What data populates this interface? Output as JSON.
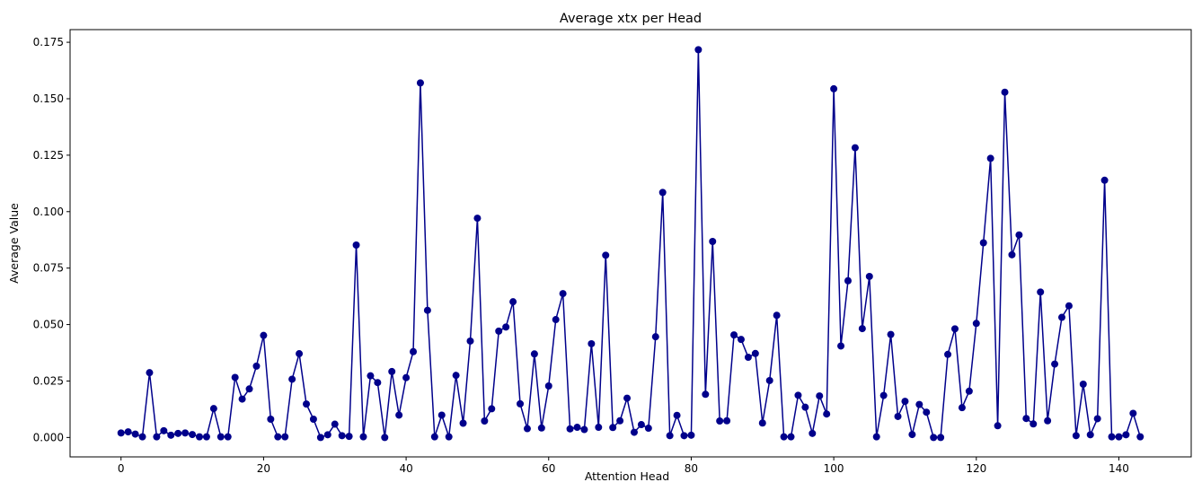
{
  "chart_data": {
    "type": "line",
    "title": "Average xtx per Head",
    "xlabel": "Attention Head",
    "ylabel": "Average Value",
    "xlim": [
      -7.15,
      150.15
    ],
    "ylim": [
      -0.0086,
      0.1806
    ],
    "xticks": [
      0,
      20,
      40,
      60,
      80,
      100,
      120,
      140
    ],
    "xtick_labels": [
      "0",
      "20",
      "40",
      "60",
      "80",
      "100",
      "120",
      "140"
    ],
    "yticks": [
      0.0,
      0.025,
      0.05,
      0.075,
      0.1,
      0.125,
      0.15,
      0.175
    ],
    "ytick_labels": [
      "0.000",
      "0.025",
      "0.050",
      "0.075",
      "0.100",
      "0.125",
      "0.150",
      "0.175"
    ],
    "grid": false,
    "legend": "none",
    "series": [
      {
        "color": "#00008b",
        "marker": "circle",
        "x": [
          0,
          1,
          2,
          3,
          4,
          5,
          6,
          7,
          8,
          9,
          10,
          11,
          12,
          13,
          14,
          15,
          16,
          17,
          18,
          19,
          20,
          21,
          22,
          23,
          24,
          25,
          26,
          27,
          28,
          29,
          30,
          31,
          32,
          33,
          34,
          35,
          36,
          37,
          38,
          39,
          40,
          41,
          42,
          43,
          44,
          45,
          46,
          47,
          48,
          49,
          50,
          51,
          52,
          53,
          54,
          55,
          56,
          57,
          58,
          59,
          60,
          61,
          62,
          63,
          64,
          65,
          66,
          67,
          68,
          69,
          70,
          71,
          72,
          73,
          74,
          75,
          76,
          77,
          78,
          79,
          80,
          81,
          82,
          83,
          84,
          85,
          86,
          87,
          88,
          89,
          90,
          91,
          92,
          93,
          94,
          95,
          96,
          97,
          98,
          99,
          100,
          101,
          102,
          103,
          104,
          105,
          106,
          107,
          108,
          109,
          110,
          111,
          112,
          113,
          114,
          115,
          116,
          117,
          118,
          119,
          120,
          121,
          122,
          123,
          124,
          125,
          126,
          127,
          128,
          129,
          130,
          131,
          132,
          133,
          134,
          135,
          136,
          137,
          138,
          139,
          140,
          141,
          142,
          143
        ],
        "values": [
          0.002,
          0.0025,
          0.0015,
          0.0003,
          0.0287,
          0.0003,
          0.003,
          0.001,
          0.0018,
          0.002,
          0.0013,
          0.0003,
          0.0003,
          0.0128,
          0.0003,
          0.0003,
          0.0266,
          0.017,
          0.0215,
          0.0316,
          0.0452,
          0.0081,
          0.0003,
          0.0003,
          0.0258,
          0.0371,
          0.0148,
          0.0081,
          0.0,
          0.0012,
          0.0059,
          0.0008,
          0.0005,
          0.0852,
          0.0003,
          0.0273,
          0.0243,
          0.0,
          0.0292,
          0.0099,
          0.0265,
          0.038,
          0.157,
          0.0563,
          0.0003,
          0.0099,
          0.0003,
          0.0275,
          0.0063,
          0.0427,
          0.0971,
          0.0073,
          0.0127,
          0.0471,
          0.0489,
          0.0601,
          0.0149,
          0.0039,
          0.037,
          0.0042,
          0.0228,
          0.0522,
          0.0637,
          0.0038,
          0.0045,
          0.0035,
          0.0415,
          0.0045,
          0.0807,
          0.0044,
          0.0074,
          0.0174,
          0.0023,
          0.0057,
          0.0041,
          0.0446,
          0.1085,
          0.0008,
          0.0098,
          0.0008,
          0.001,
          0.1717,
          0.0191,
          0.0868,
          0.0073,
          0.0074,
          0.0454,
          0.0434,
          0.0355,
          0.0372,
          0.0064,
          0.0252,
          0.0541,
          0.0003,
          0.0003,
          0.0187,
          0.0134,
          0.0018,
          0.0184,
          0.0104,
          0.1544,
          0.0405,
          0.0694,
          0.1283,
          0.0482,
          0.0713,
          0.0003,
          0.0186,
          0.0456,
          0.0093,
          0.016,
          0.0013,
          0.0146,
          0.0112,
          0.0,
          0.0,
          0.0368,
          0.0481,
          0.0132,
          0.0205,
          0.0505,
          0.0862,
          0.1236,
          0.0052,
          0.1529,
          0.0809,
          0.0897,
          0.0084,
          0.006,
          0.0644,
          0.0074,
          0.0325,
          0.0532,
          0.0583,
          0.0008,
          0.0236,
          0.0012,
          0.0083,
          0.1139,
          0.0003,
          0.0003,
          0.0012,
          0.0107,
          0.0003
        ]
      }
    ]
  }
}
